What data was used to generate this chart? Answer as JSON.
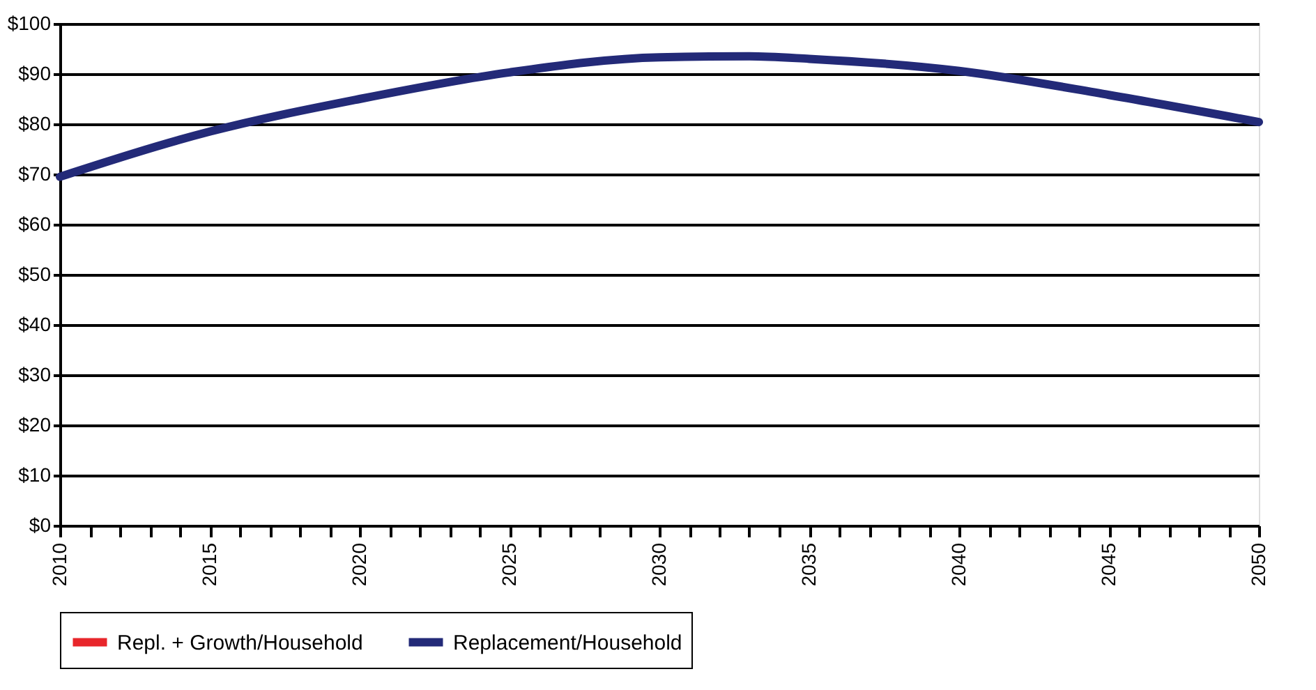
{
  "chart_data": {
    "type": "line",
    "x": [
      2010,
      2015,
      2020,
      2025,
      2030,
      2033,
      2035,
      2040,
      2045,
      2050
    ],
    "series": [
      {
        "name": "Repl. + Growth/Household",
        "color": "#e8262b",
        "values": [
          null,
          null,
          null,
          null,
          null,
          null,
          null,
          null,
          null,
          null
        ]
      },
      {
        "name": "Replacement/Household",
        "color": "#232a78",
        "values": [
          69.5,
          78.5,
          85,
          90.3,
          93.3,
          93.5,
          93,
          90.6,
          85.8,
          80.4
        ]
      }
    ],
    "xlim": [
      2010,
      2050
    ],
    "xticks": [
      2010,
      {
        "value": 2011,
        "label": null
      },
      {
        "value": 2012,
        "label": null
      },
      {
        "value": 2013,
        "label": null
      },
      {
        "value": 2014,
        "label": null
      },
      2015,
      {
        "value": 2016,
        "label": null
      },
      {
        "value": 2017,
        "label": null
      },
      {
        "value": 2018,
        "label": null
      },
      {
        "value": 2019,
        "label": null
      },
      2020,
      {
        "value": 2021,
        "label": null
      },
      {
        "value": 2022,
        "label": null
      },
      {
        "value": 2023,
        "label": null
      },
      {
        "value": 2024,
        "label": null
      },
      2025,
      {
        "value": 2026,
        "label": null
      },
      {
        "value": 2027,
        "label": null
      },
      {
        "value": 2028,
        "label": null
      },
      {
        "value": 2029,
        "label": null
      },
      2030,
      {
        "value": 2031,
        "label": null
      },
      {
        "value": 2032,
        "label": null
      },
      {
        "value": 2033,
        "label": null
      },
      {
        "value": 2034,
        "label": null
      },
      2035,
      {
        "value": 2036,
        "label": null
      },
      {
        "value": 2037,
        "label": null
      },
      {
        "value": 2038,
        "label": null
      },
      {
        "value": 2039,
        "label": null
      },
      2040,
      {
        "value": 2041,
        "label": null
      },
      {
        "value": 2042,
        "label": null
      },
      {
        "value": 2043,
        "label": null
      },
      {
        "value": 2044,
        "label": null
      },
      2045,
      {
        "value": 2046,
        "label": null
      },
      {
        "value": 2047,
        "label": null
      },
      {
        "value": 2048,
        "label": null
      },
      {
        "value": 2049,
        "label": null
      },
      2050
    ],
    "ylim": [
      0,
      100
    ],
    "yticks": [
      {
        "value": 0,
        "label": "$0"
      },
      {
        "value": 10,
        "label": "$10"
      },
      {
        "value": 20,
        "label": "$20"
      },
      {
        "value": 30,
        "label": "$30"
      },
      {
        "value": 40,
        "label": "$40"
      },
      {
        "value": 50,
        "label": "$50"
      },
      {
        "value": 60,
        "label": "$60"
      },
      {
        "value": 70,
        "label": "$70"
      },
      {
        "value": 80,
        "label": "$80"
      },
      {
        "value": 90,
        "label": "$90"
      },
      {
        "value": 100,
        "label": "$100"
      }
    ],
    "grid": "y",
    "legend": "bottom",
    "marker": "none",
    "line_style": "solid"
  }
}
